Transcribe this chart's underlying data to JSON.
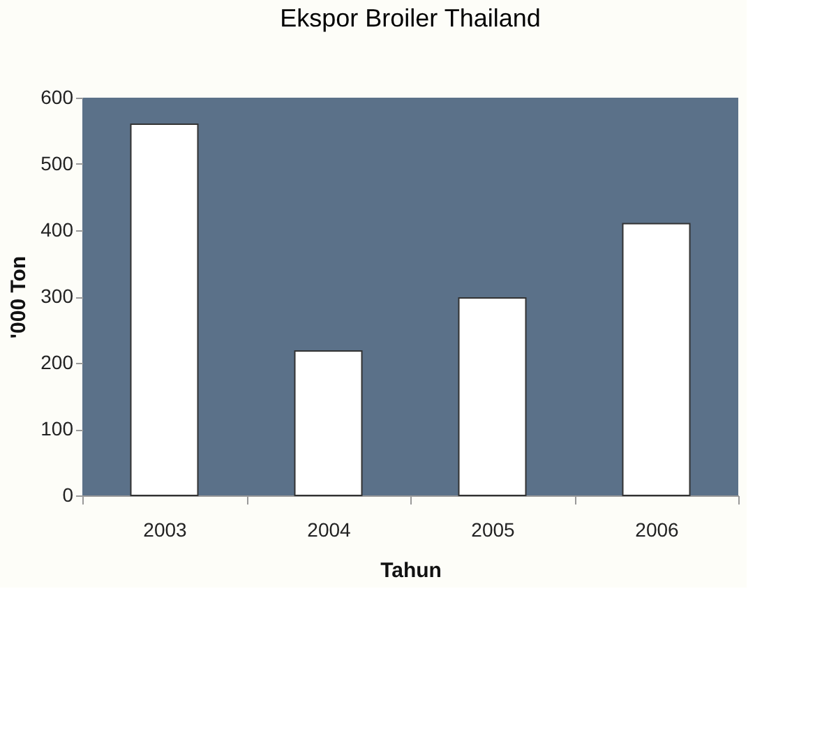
{
  "chart_data": {
    "type": "bar",
    "title": "Ekspor Broiler Thailand",
    "xlabel": "Tahun",
    "ylabel": "'000 Ton",
    "categories": [
      "2003",
      "2004",
      "2005",
      "2006"
    ],
    "values": [
      560,
      218,
      298,
      410
    ],
    "color": "#ffffff",
    "ylim": [
      0,
      600
    ],
    "yticks": [
      0,
      100,
      200,
      300,
      400,
      500,
      600
    ],
    "grid": false
  }
}
